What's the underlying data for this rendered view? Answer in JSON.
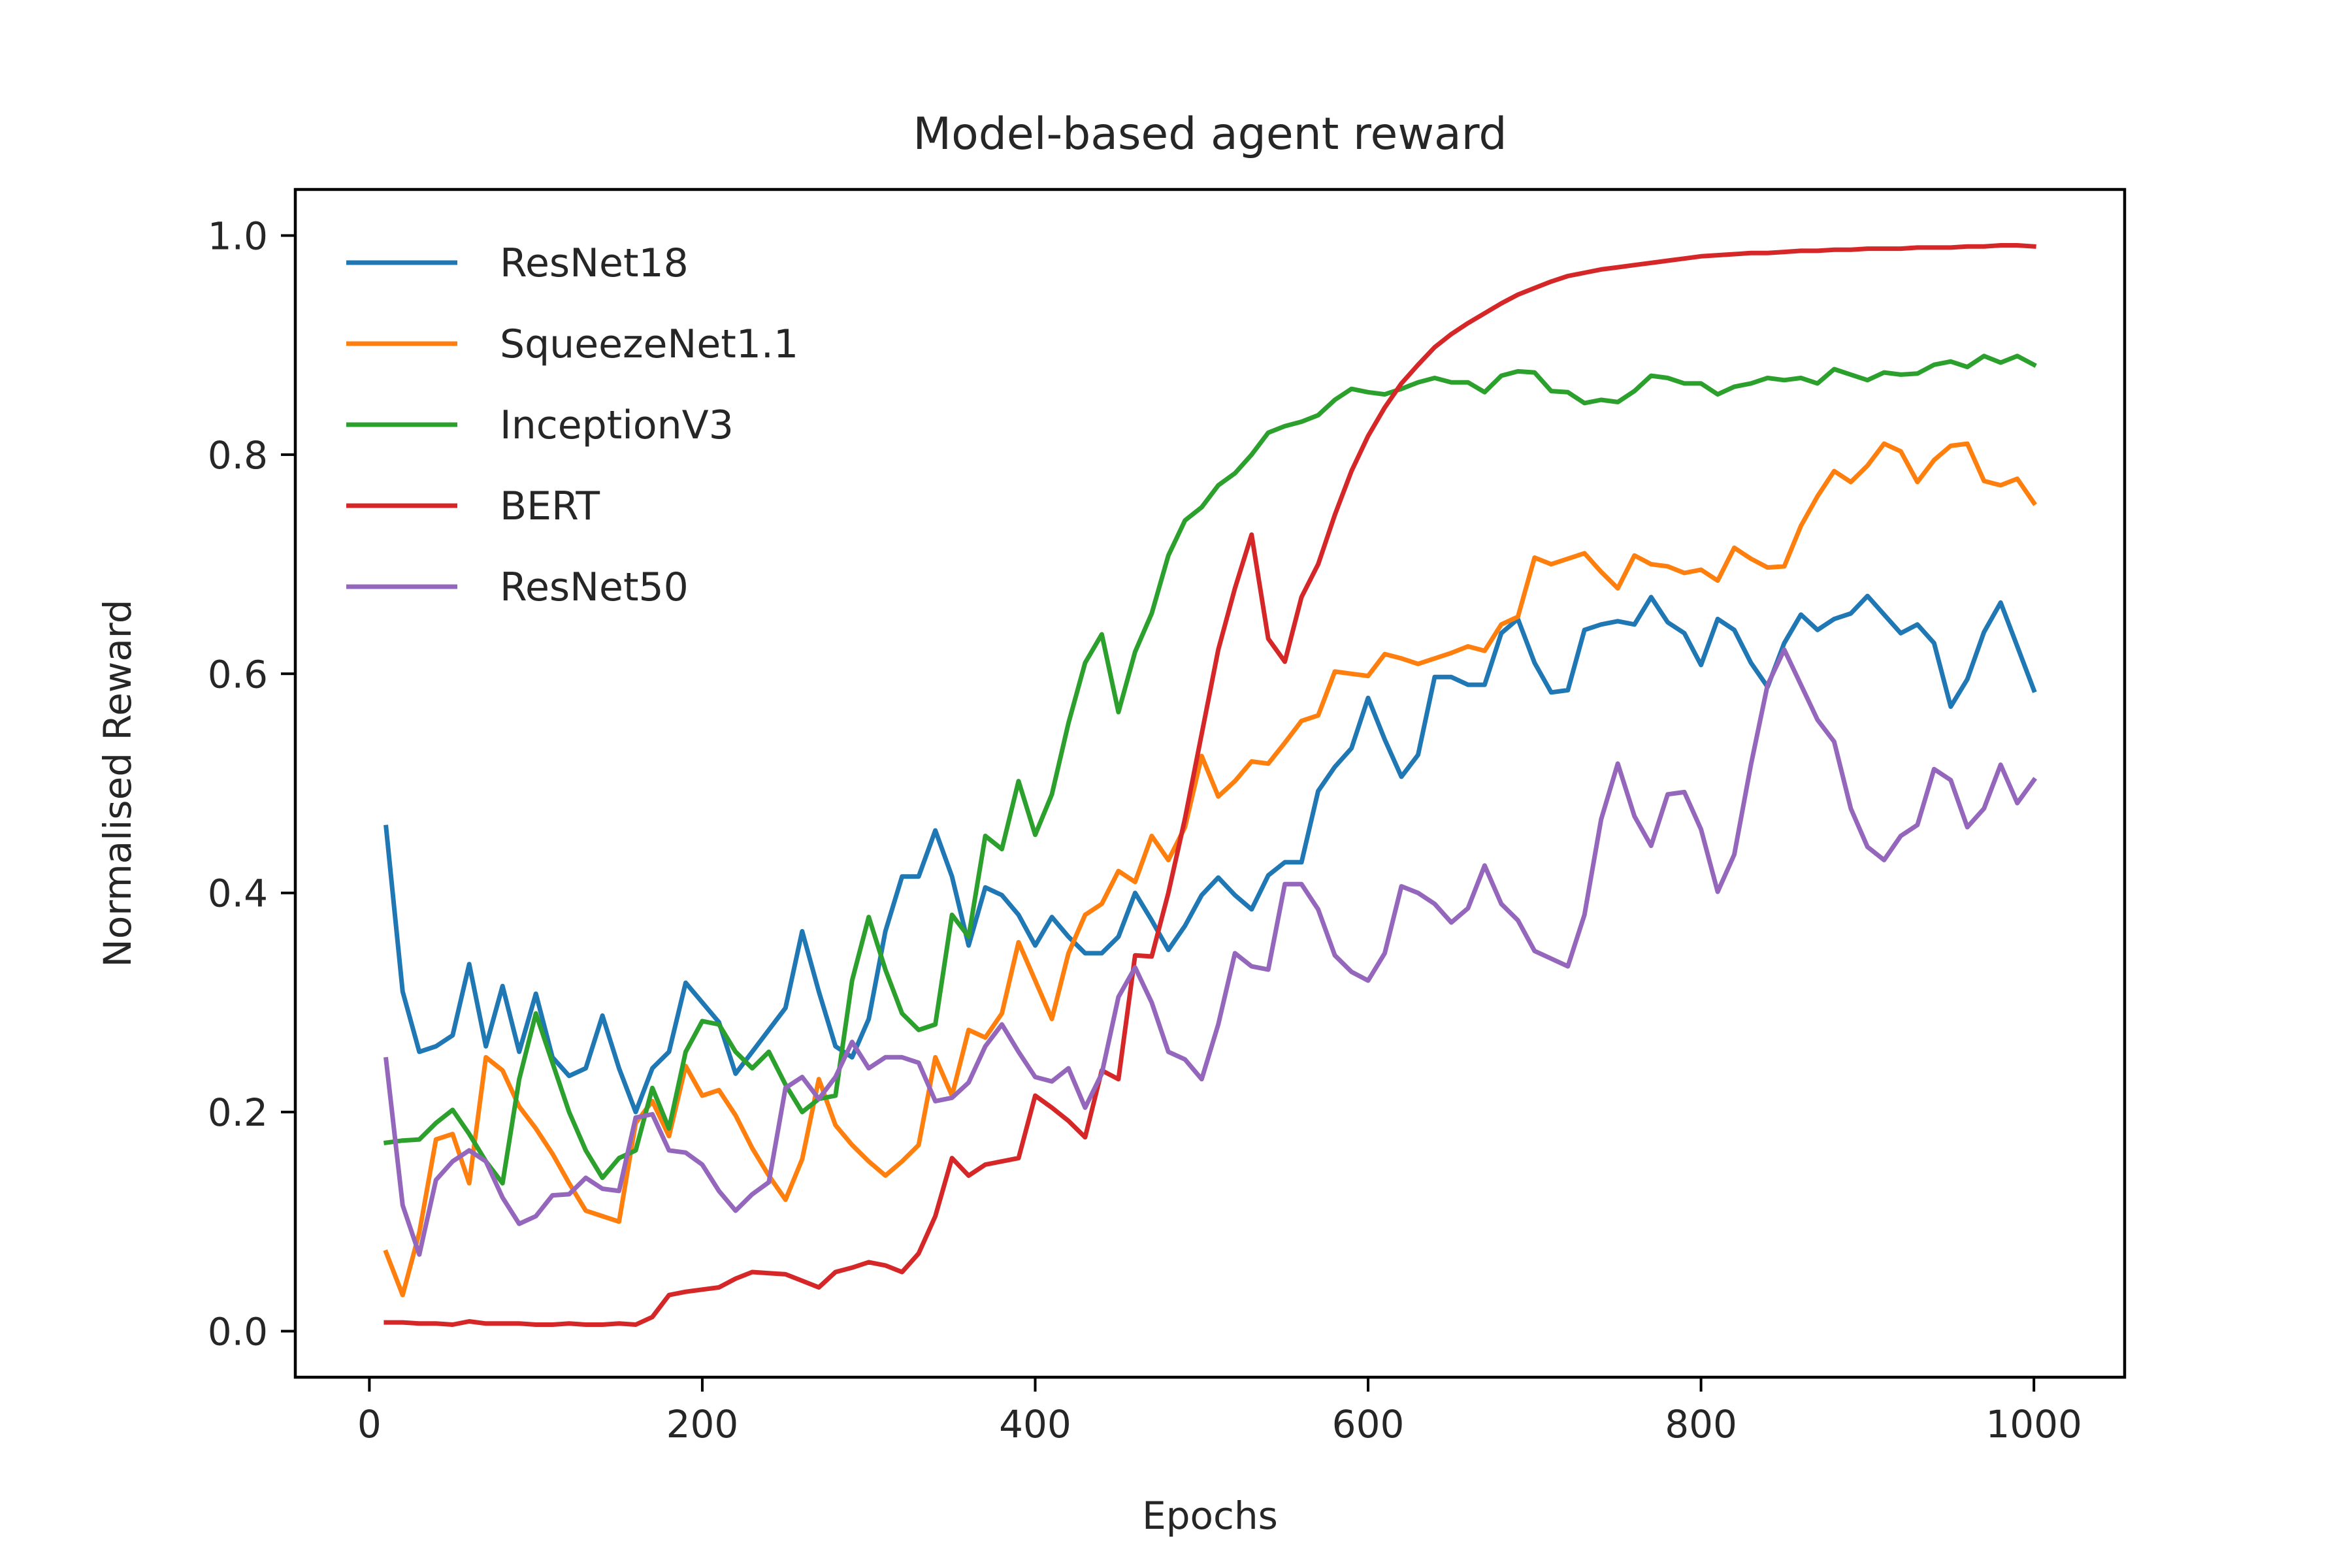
{
  "chart_data": {
    "type": "line",
    "title": "Model-based agent reward",
    "xlabel": "Epochs",
    "ylabel": "Normalised Reward",
    "xlim": [
      -44.5,
      1054.5
    ],
    "ylim": [
      -0.042,
      1.042
    ],
    "xticks": [
      0,
      200,
      400,
      600,
      800,
      1000
    ],
    "yticks": [
      0.0,
      0.2,
      0.4,
      0.6,
      0.8,
      1.0
    ],
    "xtick_labels": [
      "0",
      "200",
      "400",
      "600",
      "800",
      "1000"
    ],
    "ytick_labels": [
      "0.0",
      "0.2",
      "0.4",
      "0.6",
      "0.8",
      "1.0"
    ],
    "grid": false,
    "legend_position": "top-left",
    "x": [
      10,
      20,
      30,
      40,
      50,
      60,
      70,
      80,
      90,
      100,
      110,
      120,
      130,
      140,
      150,
      160,
      170,
      180,
      190,
      200,
      210,
      220,
      230,
      240,
      250,
      260,
      270,
      280,
      290,
      300,
      310,
      320,
      330,
      340,
      350,
      360,
      370,
      380,
      390,
      400,
      410,
      420,
      430,
      440,
      450,
      460,
      470,
      480,
      490,
      500,
      510,
      520,
      530,
      540,
      550,
      560,
      570,
      580,
      590,
      600,
      610,
      620,
      630,
      640,
      650,
      660,
      670,
      680,
      690,
      700,
      710,
      720,
      730,
      740,
      750,
      760,
      770,
      780,
      790,
      800,
      810,
      820,
      830,
      840,
      850,
      860,
      870,
      880,
      890,
      900,
      910,
      920,
      930,
      940,
      950,
      960,
      970,
      980,
      990,
      1000
    ],
    "series": [
      {
        "name": "ResNet18",
        "color": "#1f77b4",
        "values": [
          0.46,
          0.31,
          0.255,
          0.26,
          0.27,
          0.335,
          0.26,
          0.315,
          0.255,
          0.308,
          0.25,
          0.233,
          0.24,
          0.288,
          0.24,
          0.2,
          0.24,
          0.255,
          0.318,
          0.3,
          0.282,
          0.235,
          0.255,
          0.275,
          0.295,
          0.365,
          0.31,
          0.26,
          0.25,
          0.285,
          0.365,
          0.415,
          0.415,
          0.457,
          0.415,
          0.352,
          0.405,
          0.398,
          0.38,
          0.352,
          0.378,
          0.36,
          0.345,
          0.345,
          0.36,
          0.4,
          0.375,
          0.348,
          0.37,
          0.398,
          0.414,
          0.398,
          0.385,
          0.416,
          0.428,
          0.428,
          0.493,
          0.515,
          0.532,
          0.578,
          0.54,
          0.506,
          0.526,
          0.597,
          0.597,
          0.59,
          0.59,
          0.637,
          0.65,
          0.61,
          0.583,
          0.585,
          0.64,
          0.645,
          0.648,
          0.645,
          0.67,
          0.647,
          0.637,
          0.608,
          0.65,
          0.64,
          0.61,
          0.588,
          0.628,
          0.654,
          0.64,
          0.65,
          0.655,
          0.671,
          0.654,
          0.637,
          0.645,
          0.628,
          0.57,
          0.595,
          0.638,
          0.665,
          0.625,
          0.585
        ]
      },
      {
        "name": "SqueezeNet1.1",
        "color": "#ff7f0e",
        "values": [
          0.072,
          0.033,
          0.09,
          0.175,
          0.18,
          0.135,
          0.25,
          0.238,
          0.205,
          0.185,
          0.162,
          0.135,
          0.11,
          0.105,
          0.1,
          0.19,
          0.21,
          0.178,
          0.242,
          0.215,
          0.22,
          0.197,
          0.167,
          0.142,
          0.12,
          0.157,
          0.23,
          0.188,
          0.17,
          0.155,
          0.142,
          0.155,
          0.17,
          0.25,
          0.215,
          0.275,
          0.268,
          0.29,
          0.355,
          0.32,
          0.285,
          0.345,
          0.38,
          0.39,
          0.42,
          0.41,
          0.452,
          0.43,
          0.46,
          0.525,
          0.488,
          0.502,
          0.52,
          0.518,
          0.537,
          0.557,
          0.562,
          0.602,
          0.6,
          0.598,
          0.618,
          0.614,
          0.609,
          0.614,
          0.619,
          0.625,
          0.621,
          0.645,
          0.652,
          0.706,
          0.7,
          0.705,
          0.71,
          0.693,
          0.678,
          0.708,
          0.7,
          0.698,
          0.692,
          0.695,
          0.685,
          0.715,
          0.705,
          0.697,
          0.698,
          0.735,
          0.762,
          0.785,
          0.775,
          0.79,
          0.81,
          0.803,
          0.775,
          0.795,
          0.808,
          0.81,
          0.776,
          0.772,
          0.778,
          0.756
        ]
      },
      {
        "name": "InceptionV3",
        "color": "#2ca02c",
        "values": [
          0.172,
          0.174,
          0.175,
          0.19,
          0.202,
          0.18,
          0.155,
          0.135,
          0.23,
          0.29,
          0.245,
          0.2,
          0.165,
          0.14,
          0.158,
          0.165,
          0.222,
          0.185,
          0.255,
          0.283,
          0.28,
          0.255,
          0.24,
          0.255,
          0.225,
          0.2,
          0.212,
          0.215,
          0.32,
          0.378,
          0.33,
          0.29,
          0.275,
          0.28,
          0.38,
          0.36,
          0.452,
          0.44,
          0.502,
          0.453,
          0.49,
          0.555,
          0.61,
          0.636,
          0.565,
          0.62,
          0.655,
          0.708,
          0.74,
          0.752,
          0.772,
          0.783,
          0.8,
          0.82,
          0.826,
          0.83,
          0.836,
          0.85,
          0.86,
          0.857,
          0.855,
          0.86,
          0.866,
          0.87,
          0.866,
          0.866,
          0.857,
          0.872,
          0.876,
          0.875,
          0.858,
          0.857,
          0.847,
          0.85,
          0.848,
          0.858,
          0.872,
          0.87,
          0.865,
          0.865,
          0.855,
          0.862,
          0.865,
          0.87,
          0.868,
          0.87,
          0.865,
          0.878,
          0.873,
          0.868,
          0.875,
          0.873,
          0.874,
          0.882,
          0.885,
          0.88,
          0.89,
          0.884,
          0.89,
          0.882
        ]
      },
      {
        "name": "BERT",
        "color": "#d62728",
        "values": [
          0.008,
          0.008,
          0.007,
          0.007,
          0.006,
          0.009,
          0.007,
          0.007,
          0.007,
          0.006,
          0.006,
          0.007,
          0.006,
          0.006,
          0.007,
          0.006,
          0.013,
          0.033,
          0.036,
          0.038,
          0.04,
          0.048,
          0.054,
          0.053,
          0.052,
          0.046,
          0.04,
          0.054,
          0.058,
          0.063,
          0.06,
          0.054,
          0.071,
          0.105,
          0.158,
          0.142,
          0.152,
          0.155,
          0.158,
          0.215,
          0.204,
          0.192,
          0.177,
          0.238,
          0.23,
          0.343,
          0.342,
          0.4,
          0.468,
          0.545,
          0.622,
          0.678,
          0.727,
          0.632,
          0.611,
          0.67,
          0.7,
          0.745,
          0.785,
          0.817,
          0.843,
          0.865,
          0.882,
          0.898,
          0.91,
          0.92,
          0.929,
          0.938,
          0.946,
          0.952,
          0.958,
          0.963,
          0.966,
          0.969,
          0.971,
          0.973,
          0.975,
          0.977,
          0.979,
          0.981,
          0.982,
          0.983,
          0.984,
          0.984,
          0.985,
          0.986,
          0.986,
          0.987,
          0.987,
          0.988,
          0.988,
          0.988,
          0.989,
          0.989,
          0.989,
          0.99,
          0.99,
          0.991,
          0.991,
          0.99
        ]
      },
      {
        "name": "ResNet50",
        "color": "#9467bd",
        "values": [
          0.248,
          0.115,
          0.07,
          0.138,
          0.155,
          0.165,
          0.155,
          0.122,
          0.098,
          0.105,
          0.124,
          0.125,
          0.14,
          0.13,
          0.128,
          0.195,
          0.198,
          0.165,
          0.163,
          0.152,
          0.128,
          0.11,
          0.125,
          0.136,
          0.222,
          0.232,
          0.212,
          0.232,
          0.264,
          0.24,
          0.25,
          0.25,
          0.245,
          0.21,
          0.213,
          0.227,
          0.26,
          0.28,
          0.255,
          0.232,
          0.228,
          0.24,
          0.204,
          0.235,
          0.305,
          0.332,
          0.3,
          0.255,
          0.248,
          0.23,
          0.28,
          0.345,
          0.333,
          0.33,
          0.408,
          0.408,
          0.385,
          0.343,
          0.328,
          0.32,
          0.345,
          0.406,
          0.4,
          0.39,
          0.373,
          0.386,
          0.425,
          0.39,
          0.375,
          0.347,
          0.34,
          0.333,
          0.38,
          0.467,
          0.518,
          0.47,
          0.443,
          0.49,
          0.492,
          0.458,
          0.401,
          0.435,
          0.517,
          0.59,
          0.622,
          0.59,
          0.558,
          0.538,
          0.477,
          0.442,
          0.43,
          0.452,
          0.462,
          0.513,
          0.503,
          0.46,
          0.477,
          0.517,
          0.482,
          0.503
        ]
      }
    ]
  }
}
